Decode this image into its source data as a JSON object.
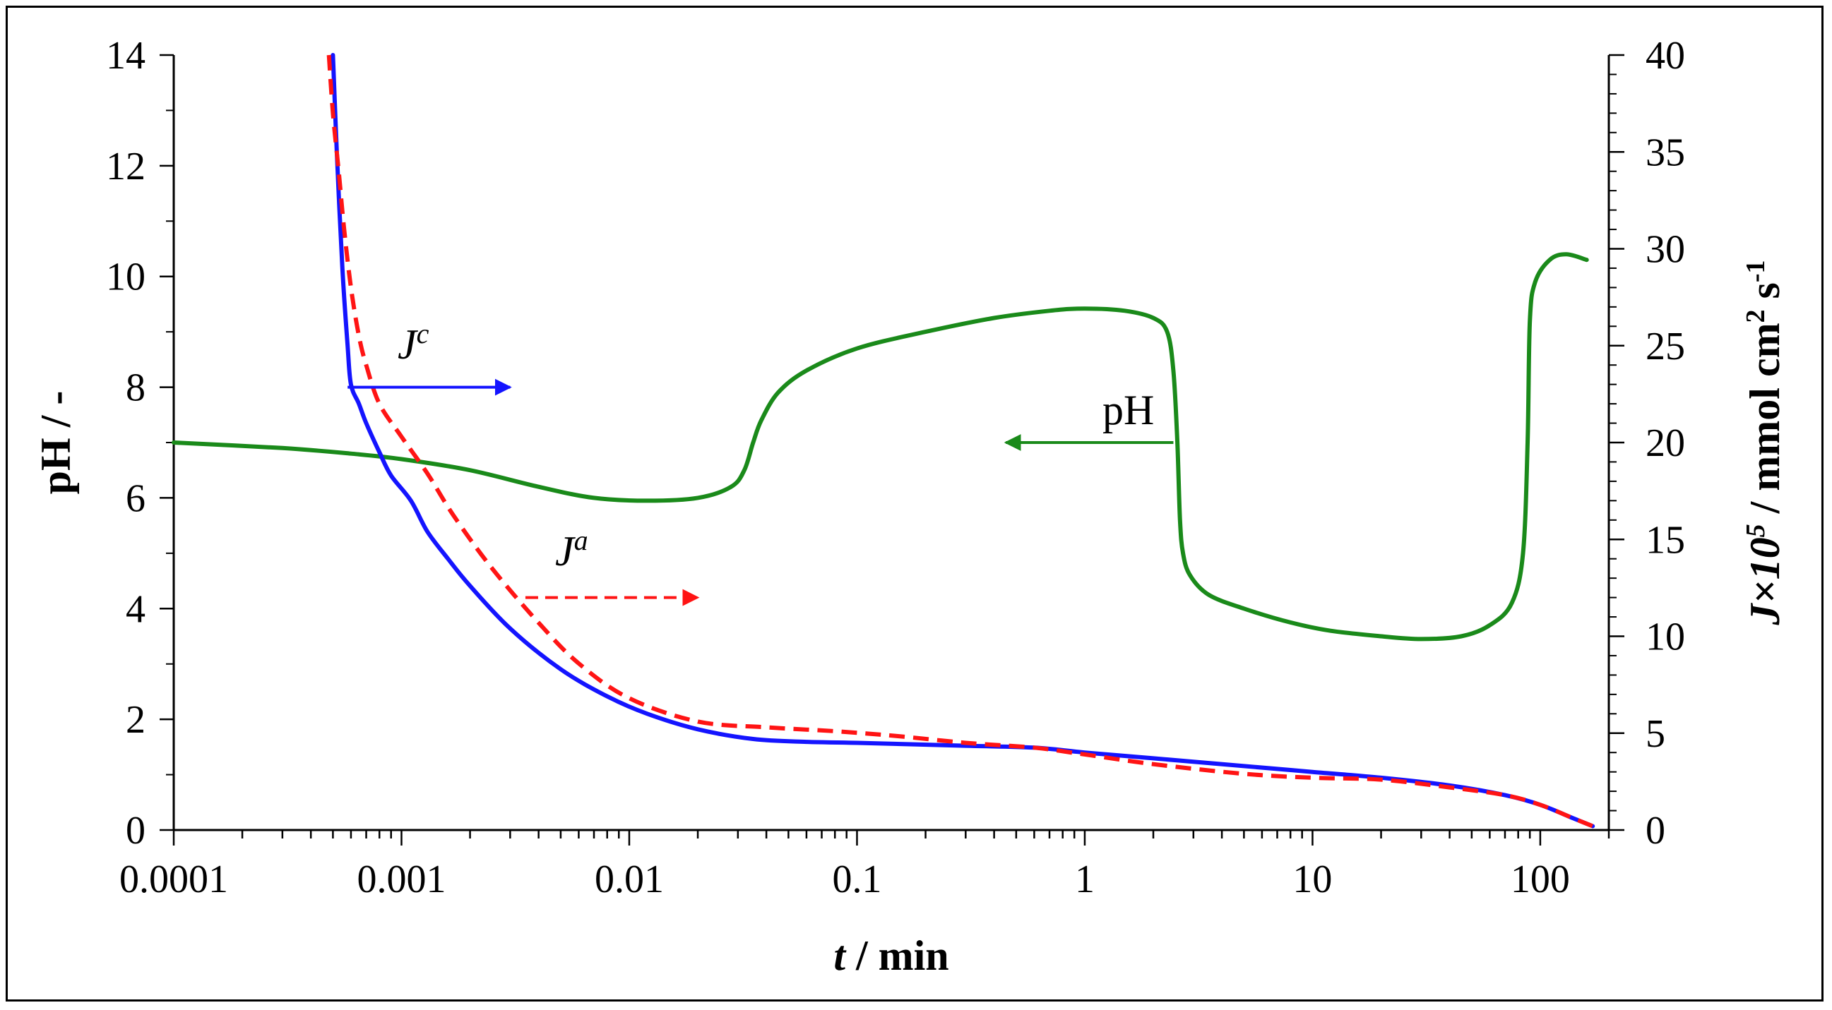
{
  "chart_data": {
    "type": "line",
    "title": "",
    "xscale": "log",
    "xlim": [
      0.0001,
      200
    ],
    "xlabel": {
      "var": "t",
      "unit": " / min"
    },
    "ylabel_left": "pH / -",
    "ylim_left": [
      0,
      14
    ],
    "ylabel_right": {
      "var": "J",
      "times": "×",
      "base": "10",
      "exp": "5",
      "unit": " / mmol  cm",
      "unit_exp1": "2",
      "unit_s": " s",
      "unit_exp2": "-1"
    },
    "ylim_right": [
      0,
      40
    ],
    "x_tick_labels": [
      "0.0001",
      "0.001",
      "0.01",
      "0.1",
      "1",
      "10",
      "100"
    ],
    "x_tick_values": [
      0.0001,
      0.001,
      0.01,
      0.1,
      1,
      10,
      100
    ],
    "y_left_tick_labels": [
      "0",
      "2",
      "4",
      "6",
      "8",
      "10",
      "12",
      "14"
    ],
    "y_left_tick_values": [
      0,
      2,
      4,
      6,
      8,
      10,
      12,
      14
    ],
    "y_right_tick_labels": [
      "0",
      "5",
      "10",
      "15",
      "20",
      "25",
      "30",
      "35",
      "40"
    ],
    "y_right_tick_values": [
      0,
      5,
      10,
      15,
      20,
      25,
      30,
      35,
      40
    ],
    "grid": false,
    "legend": "none",
    "series": [
      {
        "name": "pH",
        "axis": "left",
        "color": "#1a8a1a",
        "style": "solid",
        "x": [
          0.0001,
          0.0003,
          0.0006,
          0.001,
          0.002,
          0.004,
          0.007,
          0.012,
          0.02,
          0.028,
          0.032,
          0.035,
          0.038,
          0.045,
          0.06,
          0.1,
          0.2,
          0.4,
          0.7,
          1.0,
          1.5,
          2.0,
          2.3,
          2.45,
          2.55,
          2.62,
          2.7,
          2.9,
          3.5,
          5,
          8,
          12,
          20,
          30,
          45,
          60,
          75,
          84,
          88,
          90,
          95,
          110,
          130,
          160
        ],
        "y": [
          7.0,
          6.9,
          6.8,
          6.7,
          6.5,
          6.2,
          6.0,
          5.95,
          6.0,
          6.2,
          6.5,
          7.0,
          7.4,
          7.9,
          8.3,
          8.7,
          9.0,
          9.25,
          9.38,
          9.42,
          9.38,
          9.25,
          9.0,
          8.3,
          7.0,
          5.6,
          5.0,
          4.6,
          4.25,
          4.0,
          3.75,
          3.6,
          3.5,
          3.45,
          3.5,
          3.7,
          4.1,
          5.0,
          7.0,
          9.2,
          9.9,
          10.3,
          10.4,
          10.3
        ]
      },
      {
        "name": "Jc",
        "axis": "right",
        "color": "#1414ff",
        "style": "solid",
        "x": [
          0.0005,
          0.00052,
          0.00055,
          0.00058,
          0.0006,
          0.00065,
          0.0007,
          0.0008,
          0.0009,
          0.0011,
          0.0013,
          0.0016,
          0.002,
          0.003,
          0.005,
          0.008,
          0.012,
          0.02,
          0.035,
          0.06,
          0.1,
          0.3,
          0.6,
          1.0,
          2,
          5,
          10,
          20,
          40,
          70,
          100,
          140,
          170
        ],
        "y": [
          40,
          35,
          29,
          25,
          23,
          22,
          21,
          19.5,
          18.3,
          17,
          15.4,
          14,
          12.6,
          10.4,
          8.3,
          6.9,
          6.0,
          5.2,
          4.7,
          4.55,
          4.5,
          4.35,
          4.25,
          4.0,
          3.7,
          3.3,
          3.0,
          2.7,
          2.3,
          1.8,
          1.3,
          0.6,
          0.2
        ]
      },
      {
        "name": "Ja",
        "axis": "right",
        "color": "#ff1414",
        "style": "dashed",
        "x": [
          0.00048,
          0.0005,
          0.00053,
          0.00056,
          0.0006,
          0.00065,
          0.0007,
          0.0008,
          0.001,
          0.0013,
          0.0017,
          0.0025,
          0.004,
          0.006,
          0.01,
          0.02,
          0.04,
          0.08,
          0.15,
          0.3,
          0.6,
          1.0,
          2,
          5,
          10,
          20,
          40,
          70,
          100,
          140,
          170
        ],
        "y": [
          40,
          37,
          34,
          31,
          28,
          25.5,
          24,
          22,
          20.3,
          18.4,
          16.2,
          13.5,
          10.7,
          8.6,
          6.8,
          5.6,
          5.3,
          5.1,
          4.85,
          4.5,
          4.25,
          3.9,
          3.4,
          2.9,
          2.7,
          2.6,
          2.2,
          1.8,
          1.3,
          0.6,
          0.2
        ]
      }
    ],
    "annotations": {
      "jc": {
        "var": "J",
        "sup": "c",
        "arrow_from_x": 0.00058,
        "arrow_to_x": 0.003,
        "arrow_y_left": 8.0,
        "direction": "right"
      },
      "ja": {
        "var": "J",
        "sup": "a",
        "arrow_from_x": 0.0035,
        "arrow_to_x": 0.02,
        "arrow_y_left": 4.2,
        "direction": "right"
      },
      "ph": {
        "label": "pH",
        "arrow_from_x": 2.45,
        "arrow_to_x": 0.45,
        "arrow_y_left": 7.0,
        "direction": "left"
      }
    }
  }
}
